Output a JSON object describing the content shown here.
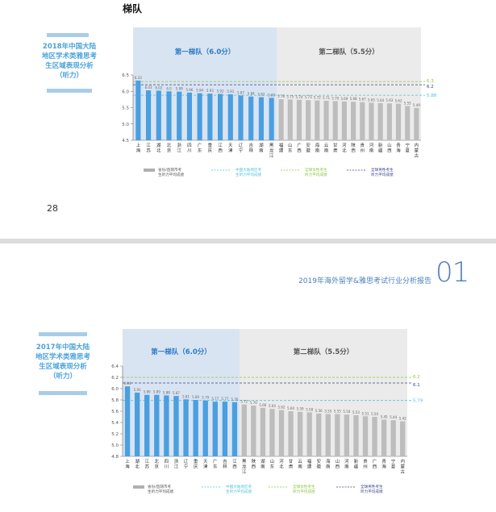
{
  "page": {
    "top_heading": "梯队",
    "page_number": "28",
    "report_title": "2019年海外留学&雅思考试行业分析报告",
    "report_logo": "01"
  },
  "charts_meta": [
    {
      "side_title": "2018年中国大陆地区学术类雅思考生区域表现分析（听力）"
    },
    {
      "side_title": "2017年中国大陆地区学术类雅思考生区域表现分析（听力）"
    }
  ],
  "chart_data": [
    {
      "type": "bar",
      "title": "",
      "tiers": [
        "第一梯队（6.0分）",
        "第二梯队（5.5分）"
      ],
      "tier1_count": 14,
      "categories": [
        "上海",
        "江苏",
        "湖北",
        "北京",
        "浙江",
        "四川",
        "广东",
        "重庆",
        "江西",
        "天津",
        "辽宁",
        "吉林",
        "湖南",
        "黑龙江",
        "福建",
        "山东",
        "广西",
        "安徽",
        "海南",
        "云南",
        "甘肃",
        "河北",
        "陕西",
        "贵州",
        "河南",
        "新疆",
        "山西",
        "青海",
        "宁夏",
        "内蒙古"
      ],
      "values": [
        6.33,
        6.03,
        6.02,
        6.0,
        5.99,
        5.96,
        5.94,
        5.93,
        5.92,
        5.91,
        5.87,
        5.84,
        5.82,
        5.8,
        5.76,
        5.75,
        5.74,
        5.73,
        5.72,
        5.71,
        5.7,
        5.69,
        5.68,
        5.67,
        5.65,
        5.64,
        5.63,
        5.62,
        5.55,
        5.49
      ],
      "value_labels": [
        "6.33",
        "6.03",
        "6.02",
        "6.0",
        "5.99",
        "5.96",
        "5.94",
        "5.93",
        "5.92",
        "5.91",
        "5.87",
        "5.84",
        "5.82",
        "5.80",
        "5.76",
        "5.75",
        "5.74",
        "5.73",
        "5.72",
        "5.71",
        "5.70",
        "5.69",
        "5.68",
        "5.67",
        "5.65",
        "5.64",
        "5.63",
        "5.62",
        "5.55",
        "5.49"
      ],
      "ylim": [
        4.5,
        6.5
      ],
      "yticks": [
        "4.5",
        "5.0",
        "5.5",
        "6.0",
        "6.5"
      ],
      "reference_lines": [
        {
          "name": "中国大陆地区考生听力平均成绩",
          "value": 5.88,
          "label": "5.88",
          "color": "#4fc3d8"
        },
        {
          "name": "全球女性考生听力平均成绩",
          "value": 6.3,
          "label": "6.3",
          "color": "#8cc63f"
        },
        {
          "name": "全球男性考生听力平均成绩",
          "value": 6.2,
          "label": "6.2",
          "color": "#3b3f8f"
        }
      ],
      "legend": [
        "省份/直辖市考生听力平均成绩",
        "中国大陆地区考生听力平均成绩",
        "全球女性考生听力平均成绩",
        "全球男性考生听力平均成绩"
      ],
      "colors": {
        "tier1_bar": "#4a9fe0",
        "tier2_bar": "#bdbdbd",
        "tier1_bg": "#d9e4f2",
        "tier2_bg": "#ebebeb",
        "tier1_text": "#2a7cc7",
        "tier2_text": "#555555"
      }
    },
    {
      "type": "bar",
      "title": "",
      "tiers": [
        "第一梯队（6.0分）",
        "第二梯队（5.5分）"
      ],
      "tier1_count": 12,
      "categories": [
        "上海",
        "湖北",
        "江苏",
        "北京",
        "四川",
        "浙江",
        "辽宁",
        "重庆",
        "天津",
        "广东",
        "吉林",
        "江西",
        "黑龙江",
        "陕西",
        "湖南",
        "山东",
        "河北",
        "甘肃",
        "云南",
        "福建",
        "安徽",
        "海南",
        "山西",
        "河南",
        "新疆",
        "贵州",
        "广西",
        "青海",
        "宁夏",
        "内蒙古"
      ],
      "values": [
        6.04,
        5.93,
        5.89,
        5.89,
        5.88,
        5.87,
        5.81,
        5.8,
        5.79,
        5.77,
        5.77,
        5.76,
        5.72,
        5.7,
        5.66,
        5.64,
        5.62,
        5.6,
        5.59,
        5.58,
        5.56,
        5.55,
        5.55,
        5.54,
        5.53,
        5.51,
        5.5,
        5.45,
        5.44,
        5.42
      ],
      "value_labels": [
        "6.04",
        "5.93",
        "5.89",
        "5.89",
        "5.88",
        "5.87",
        "5.81",
        "5.80",
        "5.79",
        "5.77",
        "5.77",
        "5.76",
        "5.72",
        "5.70",
        "5.66",
        "5.64",
        "5.62",
        "5.60",
        "5.59",
        "5.58",
        "5.56",
        "5.55",
        "5.55",
        "5.54",
        "5.53",
        "5.51",
        "5.50",
        "5.45",
        "5.44",
        "5.42"
      ],
      "ylim": [
        4.8,
        6.4
      ],
      "yticks": [
        "4.8",
        "5.0",
        "5.2",
        "5.4",
        "5.6",
        "5.8",
        "6.0",
        "6.2",
        "6.4"
      ],
      "reference_lines": [
        {
          "name": "中国大陆地区考生听力平均成绩",
          "value": 5.79,
          "label": "5.79",
          "color": "#4fc3d8"
        },
        {
          "name": "全球女性考生听力平均成绩",
          "value": 6.2,
          "label": "6.2",
          "color": "#8cc63f"
        },
        {
          "name": "全球男性考生听力平均成绩",
          "value": 6.1,
          "label": "6.1",
          "color": "#3b3f8f"
        }
      ],
      "legend": [
        "省份/直辖市考生听力平均成绩",
        "中国大陆地区考生听力平均成绩",
        "全球女性考生听力平均成绩",
        "全球男性考生听力平均成绩"
      ],
      "colors": {
        "tier1_bar": "#4a9fe0",
        "tier2_bar": "#bdbdbd",
        "tier1_bg": "#d9e4f2",
        "tier2_bg": "#ebebeb",
        "tier1_text": "#2a7cc7",
        "tier2_text": "#555555"
      }
    }
  ]
}
